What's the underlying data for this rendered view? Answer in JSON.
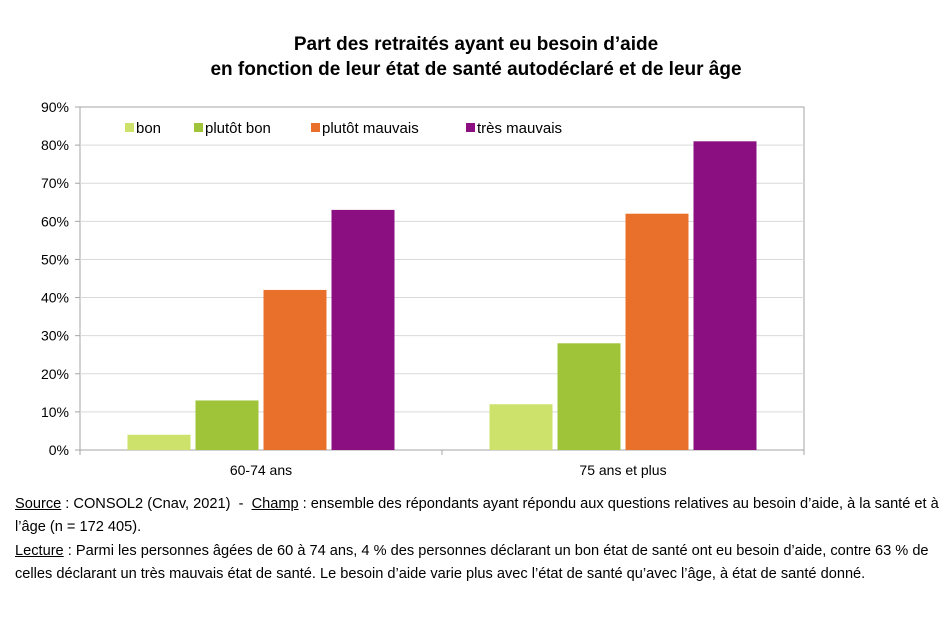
{
  "chart_data": {
    "type": "bar",
    "title_line1": "Part des retraités ayant eu besoin d’aide",
    "title_line2": "en fonction de leur état de santé autodéclaré et de leur âge",
    "categories": [
      "60-74 ans",
      "75 ans et plus"
    ],
    "series": [
      {
        "name": "bon",
        "color": "#cde26b",
        "values": [
          4,
          12
        ]
      },
      {
        "name": "plutôt bon",
        "color": "#9fc43a",
        "values": [
          13,
          28
        ]
      },
      {
        "name": "plutôt mauvais",
        "color": "#e8702a",
        "values": [
          42,
          62
        ]
      },
      {
        "name": "très mauvais",
        "color": "#8b0f80",
        "values": [
          63,
          81
        ]
      }
    ],
    "ylim": [
      0,
      90
    ],
    "yticks": [
      "0%",
      "10%",
      "20%",
      "30%",
      "40%",
      "50%",
      "60%",
      "70%",
      "80%",
      "90%"
    ],
    "grid": true,
    "legend": "top-left"
  },
  "notes": {
    "source_label": "Source",
    "source_text": " : CONSOL2 (Cnav, 2021)  -  ",
    "champ_label": "Champ",
    "champ_text": " : ensemble des répondants ayant répondu aux questions relatives au besoin d’aide, à la santé et à l’âge (n = 172 405).",
    "lecture_label": "Lecture",
    "lecture_text": " : Parmi les personnes âgées de 60 à 74 ans, 4 % des personnes déclarant un bon état de santé ont eu besoin d’aide, contre 63 % de celles déclarant un très mauvais état de santé. Le besoin d’aide varie plus avec l’état de santé qu’avec l’âge, à état de santé donné."
  }
}
